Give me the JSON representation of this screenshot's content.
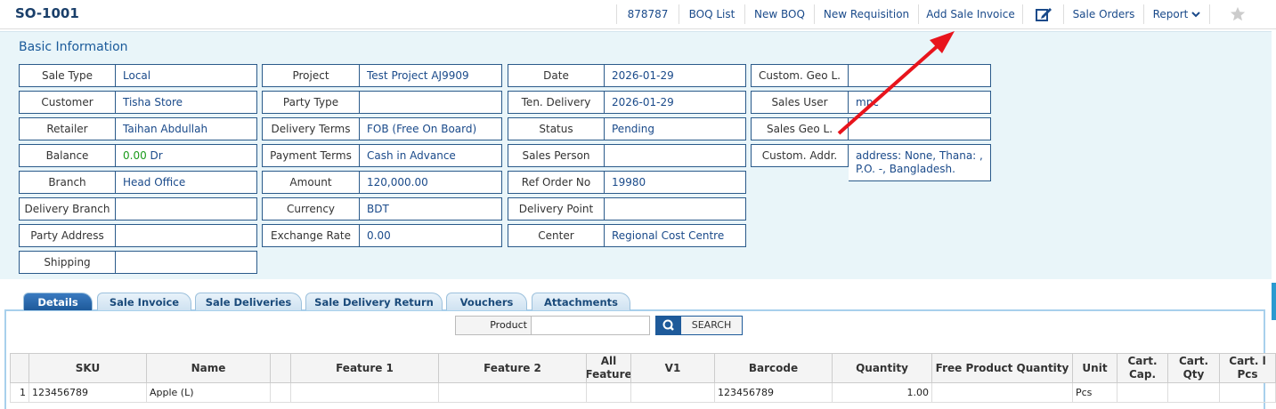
{
  "header": {
    "title": "SO-1001",
    "actions": [
      "878787",
      "BOQ List",
      "New BOQ",
      "New Requisition",
      "Add Sale Invoice",
      "Sale Orders",
      "Report"
    ]
  },
  "basic_information": {
    "title": "Basic Information",
    "columns": [
      [
        {
          "label": "Sale Type",
          "value": "Local"
        },
        {
          "label": "Customer",
          "value": "Tisha Store"
        },
        {
          "label": "Retailer",
          "value": "Taihan Abdullah"
        },
        {
          "label": "Balance",
          "value": "0.00",
          "suffix": "Dr"
        },
        {
          "label": "Branch",
          "value": "Head Office"
        },
        {
          "label": "Delivery Branch"
        },
        {
          "label": "Party Address"
        },
        {
          "label": "Shipping"
        }
      ],
      [
        {
          "label": "Project",
          "value": "Test Project AJ9909"
        },
        {
          "label": "Party Type"
        },
        {
          "label": "Delivery Terms",
          "value": "FOB (Free On Board)"
        },
        {
          "label": "Payment Terms",
          "value": "Cash in Advance"
        },
        {
          "label": "Amount",
          "value": "120,000.00"
        },
        {
          "label": "Currency",
          "value": "BDT"
        },
        {
          "label": "Exchange Rate",
          "value": "0.00"
        }
      ],
      [
        {
          "label": "Date",
          "value": "2026-01-29"
        },
        {
          "label": "Ten. Delivery",
          "value": "2026-01-29"
        },
        {
          "label": "Status",
          "value": "Pending"
        },
        {
          "label": "Sales Person"
        },
        {
          "label": "Ref Order No",
          "value": "19980"
        },
        {
          "label": "Delivery Point"
        },
        {
          "label": "Center",
          "value": "Regional Cost Centre"
        }
      ],
      [
        {
          "label": "Custom. Geo L."
        },
        {
          "label": "Sales User",
          "value": "mpc"
        },
        {
          "label": "Sales Geo L."
        },
        {
          "label": "Custom. Addr.",
          "value": "address: None, Thana: , P.O. -, Bangladesh."
        }
      ]
    ]
  },
  "tabs": [
    "Details",
    "Sale Invoice",
    "Sale Deliveries",
    "Sale Delivery Return",
    "Vouchers",
    "Attachments"
  ],
  "search": {
    "label": "Product",
    "button": "SEARCH"
  },
  "table": {
    "headers": [
      null,
      "SKU",
      "Name",
      null,
      "Feature 1",
      "Feature 2",
      "All Feature",
      "V1",
      "Barcode",
      "Quantity",
      "Free Product Quantity",
      "Unit",
      "Cart. Cap.",
      "Cart. Qty",
      "Cart. l Pcs"
    ],
    "rows": [
      [
        "1",
        "123456789",
        "Apple (L)",
        null,
        null,
        null,
        null,
        null,
        "123456789",
        "1.00",
        null,
        "Pcs",
        null,
        null,
        null
      ]
    ]
  }
}
